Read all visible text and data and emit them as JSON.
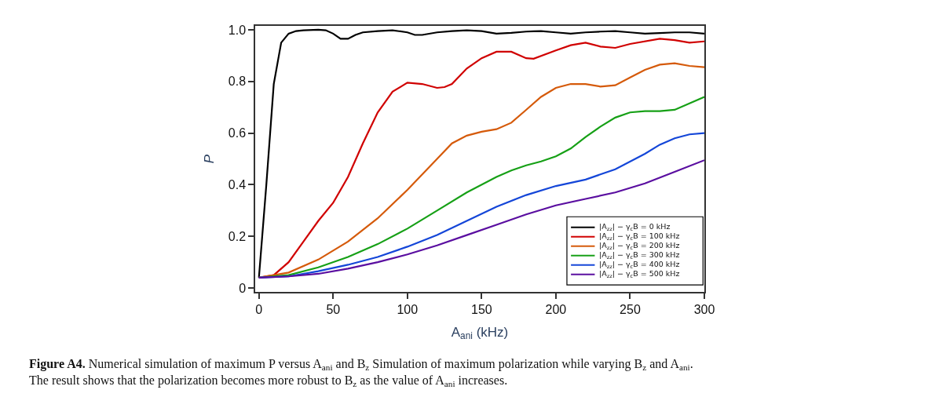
{
  "chart_data": {
    "type": "line",
    "xlabel": "A$_{ani}$ (kHz)",
    "ylabel": "P",
    "x": [
      0,
      5,
      10,
      15,
      20,
      25,
      30,
      40,
      45,
      50,
      55,
      60,
      65,
      70,
      80,
      90,
      100,
      105,
      110,
      120,
      130,
      140,
      150,
      160,
      170,
      180,
      185,
      190,
      200,
      210,
      220,
      230,
      240,
      250,
      260,
      270,
      280,
      290,
      300
    ],
    "series": [
      {
        "name": "|A$_{zz}$| − γ$_{c}$B = 0 kHz",
        "color": "#000000",
        "values": [
          0.04,
          0.4,
          0.79,
          0.95,
          0.985,
          0.995,
          0.998,
          1.0,
          0.998,
          0.985,
          0.965,
          0.965,
          0.98,
          0.99,
          0.995,
          0.998,
          0.99,
          0.98,
          0.98,
          0.99,
          0.995,
          0.998,
          0.995,
          0.985,
          0.988,
          0.993,
          0.994,
          0.995,
          0.99,
          0.985,
          0.99,
          0.993,
          0.995,
          0.99,
          0.985,
          0.987,
          0.99,
          0.99,
          0.985
        ]
      },
      {
        "name": "|A$_{zz}$| − γ$_{c}$B = 100 kHz",
        "color": "#d00000",
        "x": [
          0,
          10,
          20,
          30,
          40,
          50,
          60,
          70,
          80,
          90,
          100,
          110,
          120,
          125,
          130,
          140,
          150,
          160,
          170,
          180,
          185,
          200,
          210,
          220,
          230,
          240,
          250,
          270,
          280,
          290,
          300
        ],
        "values": [
          0.04,
          0.05,
          0.1,
          0.18,
          0.26,
          0.33,
          0.43,
          0.56,
          0.68,
          0.76,
          0.795,
          0.79,
          0.775,
          0.778,
          0.79,
          0.85,
          0.89,
          0.915,
          0.915,
          0.89,
          0.888,
          0.92,
          0.94,
          0.95,
          0.935,
          0.93,
          0.945,
          0.965,
          0.96,
          0.95,
          0.955
        ]
      },
      {
        "name": "|A$_{zz}$| − γ$_{c}$B = 200 kHz",
        "color": "#d55a0a",
        "x": [
          0,
          20,
          40,
          60,
          80,
          100,
          120,
          130,
          140,
          150,
          160,
          170,
          180,
          190,
          200,
          210,
          220,
          230,
          240,
          250,
          260,
          270,
          280,
          290,
          300
        ],
        "values": [
          0.04,
          0.06,
          0.11,
          0.18,
          0.27,
          0.38,
          0.5,
          0.56,
          0.59,
          0.605,
          0.615,
          0.64,
          0.69,
          0.74,
          0.775,
          0.79,
          0.79,
          0.78,
          0.785,
          0.815,
          0.845,
          0.865,
          0.87,
          0.86,
          0.855
        ]
      },
      {
        "name": "|A$_{zz}$| − γ$_{c}$B = 300 kHz",
        "color": "#16a016",
        "x": [
          0,
          20,
          40,
          60,
          80,
          100,
          120,
          140,
          160,
          170,
          180,
          190,
          200,
          210,
          220,
          230,
          240,
          250,
          260,
          270,
          280,
          290,
          300
        ],
        "values": [
          0.04,
          0.05,
          0.08,
          0.12,
          0.17,
          0.23,
          0.3,
          0.37,
          0.43,
          0.455,
          0.475,
          0.49,
          0.51,
          0.54,
          0.585,
          0.625,
          0.66,
          0.68,
          0.685,
          0.685,
          0.69,
          0.715,
          0.74
        ]
      },
      {
        "name": "|A$_{zz}$| − γ$_{c}$B = 400 kHz",
        "color": "#1446d8",
        "x": [
          0,
          20,
          40,
          60,
          80,
          100,
          120,
          140,
          160,
          180,
          200,
          220,
          240,
          260,
          270,
          280,
          290,
          300
        ],
        "values": [
          0.04,
          0.045,
          0.065,
          0.09,
          0.12,
          0.16,
          0.205,
          0.26,
          0.315,
          0.36,
          0.395,
          0.42,
          0.46,
          0.52,
          0.555,
          0.58,
          0.595,
          0.6
        ]
      },
      {
        "name": "|A$_{zz}$| − γ$_{c}$B = 500 kHz",
        "color": "#5a0ea0",
        "x": [
          0,
          20,
          40,
          60,
          80,
          100,
          120,
          140,
          160,
          180,
          200,
          220,
          240,
          260,
          280,
          300
        ],
        "values": [
          0.04,
          0.045,
          0.055,
          0.075,
          0.1,
          0.13,
          0.165,
          0.205,
          0.245,
          0.285,
          0.32,
          0.345,
          0.37,
          0.405,
          0.45,
          0.495
        ]
      }
    ],
    "xlim": [
      -2.5,
      300
    ],
    "xticks": [
      0,
      50,
      100,
      150,
      200,
      250,
      300
    ],
    "ylim": [
      -0.015,
      1.015
    ],
    "yticks": [
      {
        "value": 0,
        "label": "0"
      },
      0.2,
      0.4,
      0.6,
      0.8,
      {
        "value": 1.0,
        "label": "1.0"
      }
    ],
    "legend": "bottom right",
    "line_style": "solid",
    "marker": "none",
    "annotations": [
      "Figure A4. Numerical simulation of maximum P versus A$_{ani}$ and B$_{z}$ Simulation of maximum polarization while varying B$_{z}$ and A$_{ani}$.\nThe result shows that the polarization becomes more robust to B$_{z}$ as the value of A$_{ani}$ increases."
    ]
  }
}
